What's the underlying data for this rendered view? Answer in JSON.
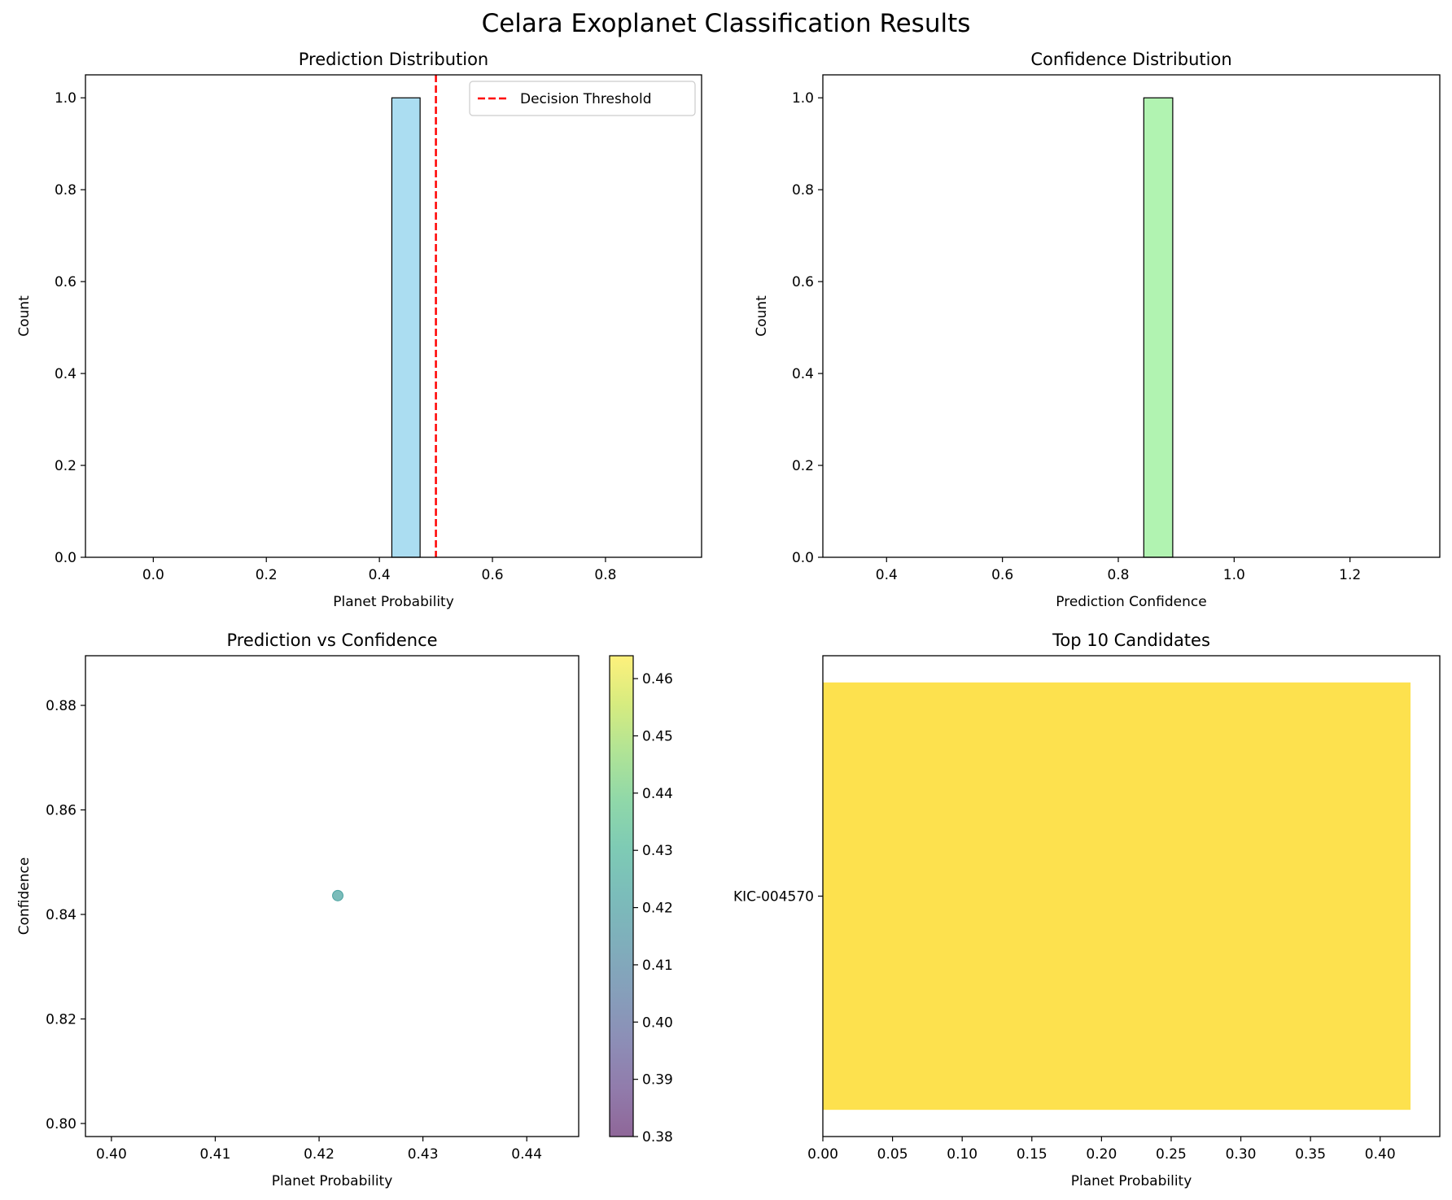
{
  "figure": {
    "suptitle": "Celara Exoplanet Classification Results"
  },
  "chart_data": [
    {
      "type": "bar",
      "subtype": "histogram",
      "title": "Prediction Distribution",
      "xlabel": "Planet Probability",
      "ylabel": "Count",
      "xlim": [
        -0.12,
        0.97
      ],
      "ylim": [
        0,
        1.05
      ],
      "xticks": [
        0.0,
        0.2,
        0.4,
        0.6,
        0.8
      ],
      "xtick_labels": [
        "0.0",
        "0.2",
        "0.4",
        "0.6",
        "0.8"
      ],
      "yticks": [
        0.0,
        0.2,
        0.4,
        0.6,
        0.8,
        1.0
      ],
      "ytick_labels": [
        "0.0",
        "0.2",
        "0.4",
        "0.6",
        "0.8",
        "1.0"
      ],
      "bars": [
        {
          "x0": 0.422,
          "x1": 0.472,
          "count": 1
        }
      ],
      "bar_color": "#87ceeb",
      "threshold": {
        "x": 0.5,
        "label": "Decision Threshold",
        "color": "#ff0000",
        "style": "dashed"
      },
      "legend": "top-right",
      "grid": false
    },
    {
      "type": "bar",
      "subtype": "histogram",
      "title": "Confidence Distribution",
      "xlabel": "Prediction Confidence",
      "ylabel": "Count",
      "xlim": [
        0.29,
        1.355
      ],
      "ylim": [
        0,
        1.05
      ],
      "xticks": [
        0.4,
        0.6,
        0.8,
        1.0,
        1.2
      ],
      "xtick_labels": [
        "0.4",
        "0.6",
        "0.8",
        "1.0",
        "1.2"
      ],
      "yticks": [
        0.0,
        0.2,
        0.4,
        0.6,
        0.8,
        1.0
      ],
      "ytick_labels": [
        "0.0",
        "0.2",
        "0.4",
        "0.6",
        "0.8",
        "1.0"
      ],
      "bars": [
        {
          "x0": 0.844,
          "x1": 0.894,
          "count": 1
        }
      ],
      "bar_color": "#90ee90",
      "grid": false
    },
    {
      "type": "scatter",
      "title": "Prediction vs Confidence",
      "xlabel": "Planet Probability",
      "ylabel": "Confidence",
      "xlim": [
        0.3975,
        0.445
      ],
      "ylim": [
        0.7975,
        0.8895
      ],
      "xticks": [
        0.4,
        0.41,
        0.42,
        0.43,
        0.44
      ],
      "xtick_labels": [
        "0.40",
        "0.41",
        "0.42",
        "0.43",
        "0.44"
      ],
      "yticks": [
        0.8,
        0.82,
        0.84,
        0.86,
        0.88
      ],
      "ytick_labels": [
        "0.80",
        "0.82",
        "0.84",
        "0.86",
        "0.88"
      ],
      "points": [
        {
          "x": 0.4218,
          "y": 0.8436,
          "value": 0.4218
        }
      ],
      "colorbar": {
        "range": [
          0.38,
          0.464
        ],
        "ticks": [
          0.38,
          0.39,
          0.4,
          0.41,
          0.42,
          0.43,
          0.44,
          0.45,
          0.46
        ],
        "tick_labels": [
          "0.38",
          "0.39",
          "0.40",
          "0.41",
          "0.42",
          "0.43",
          "0.44",
          "0.45",
          "0.46"
        ],
        "colormap": "viridis"
      },
      "grid": false
    },
    {
      "type": "bar",
      "orientation": "horizontal",
      "title": "Top 10 Candidates",
      "xlabel": "Planet Probability",
      "xlim": [
        0,
        0.4428
      ],
      "xticks": [
        0.0,
        0.05,
        0.1,
        0.15,
        0.2,
        0.25,
        0.3,
        0.35,
        0.4
      ],
      "xtick_labels": [
        "0.00",
        "0.05",
        "0.10",
        "0.15",
        "0.20",
        "0.25",
        "0.30",
        "0.35",
        "0.40"
      ],
      "categories": [
        "KIC-004570"
      ],
      "values": [
        0.4218
      ],
      "bar_color": "#fde14e",
      "grid": false
    }
  ]
}
